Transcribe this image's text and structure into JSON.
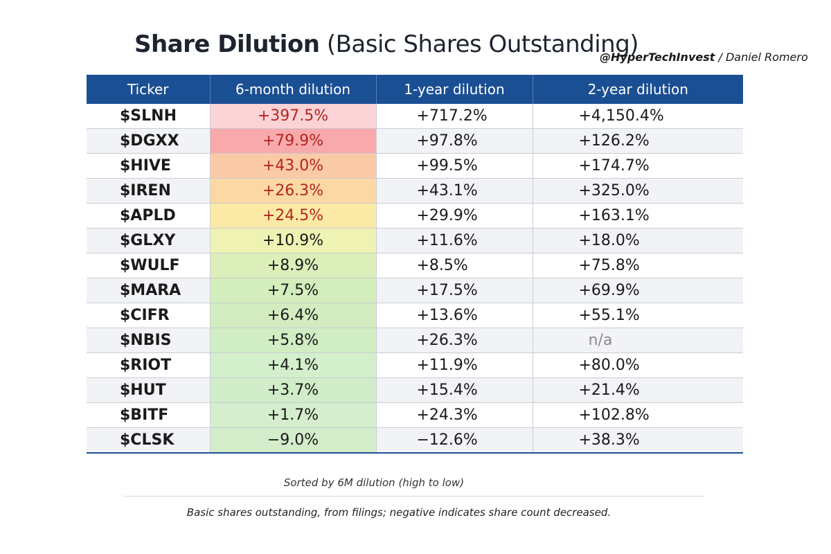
{
  "title": {
    "bold": "Share Dilution",
    "light": "(Basic Shares Outstanding)"
  },
  "attribution": {
    "handle": "@HyperTechInvest",
    "separator": "/",
    "author": "Daniel Romero"
  },
  "table": {
    "headers": [
      "Ticker",
      "6-month dilution",
      "1-year dilution",
      "2-year dilution"
    ],
    "rows": [
      {
        "ticker": "$SLNH",
        "six": "+397.5%",
        "one": "+717.2%",
        "two": "+4,150.4%",
        "six_color": "#fbd3d6",
        "six_red": true
      },
      {
        "ticker": "$DGXX",
        "six": "+79.9%",
        "one": "+97.8%",
        "two": "+126.2%",
        "six_color": "#f7a9ac",
        "six_red": true
      },
      {
        "ticker": "$HIVE",
        "six": "+43.0%",
        "one": "+99.5%",
        "two": "+174.7%",
        "six_color": "#fbcaa6",
        "six_red": true
      },
      {
        "ticker": "$IREN",
        "six": "+26.3%",
        "one": "+43.1%",
        "two": "+325.0%",
        "six_color": "#fcd8a5",
        "six_red": true
      },
      {
        "ticker": "$APLD",
        "six": "+24.5%",
        "one": "+29.9%",
        "two": "+163.1%",
        "six_color": "#fbe9a6",
        "six_red": true
      },
      {
        "ticker": "$GLXY",
        "six": "+10.9%",
        "one": "+11.6%",
        "two": "+18.0%",
        "six_color": "#eef3b4",
        "six_red": false
      },
      {
        "ticker": "$WULF",
        "six": "+8.9%",
        "one": "+8.5%",
        "two": "+75.8%",
        "six_color": "#dcefbb",
        "six_red": false
      },
      {
        "ticker": "$MARA",
        "six": "+7.5%",
        "one": "+17.5%",
        "two": "+69.9%",
        "six_color": "#d3edbd",
        "six_red": false
      },
      {
        "ticker": "$CIFR",
        "six": "+6.4%",
        "one": "+13.6%",
        "two": "+55.1%",
        "six_color": "#d2ecbf",
        "six_red": false
      },
      {
        "ticker": "$NBIS",
        "six": "+5.8%",
        "one": "+26.3%",
        "two": "n/a",
        "six_color": "#d1edc4",
        "six_red": false
      },
      {
        "ticker": "$RIOT",
        "six": "+4.1%",
        "one": "+11.9%",
        "two": "+80.0%",
        "six_color": "#d3efcc",
        "six_red": false
      },
      {
        "ticker": "$HUT",
        "six": "+3.7%",
        "one": "+15.4%",
        "two": "+21.4%",
        "six_color": "#d0ecc8",
        "six_red": false
      },
      {
        "ticker": "$BITF",
        "six": "+1.7%",
        "one": "+24.3%",
        "two": "+102.8%",
        "six_color": "#d5eecd",
        "six_red": false
      },
      {
        "ticker": "$CLSK",
        "six": "−9.0%",
        "one": "−12.6%",
        "two": "+38.3%",
        "six_color": "#d3ecc9",
        "six_red": false
      }
    ]
  },
  "notes": {
    "sort": "Sorted by 6M dilution (high to low)",
    "footnote": "Basic shares outstanding, from filings; negative indicates share count decreased."
  },
  "colors": {
    "header_bg": "#1b4f93",
    "highlight_red_text": "#b3261e",
    "na_text": "#8a8a8a"
  }
}
